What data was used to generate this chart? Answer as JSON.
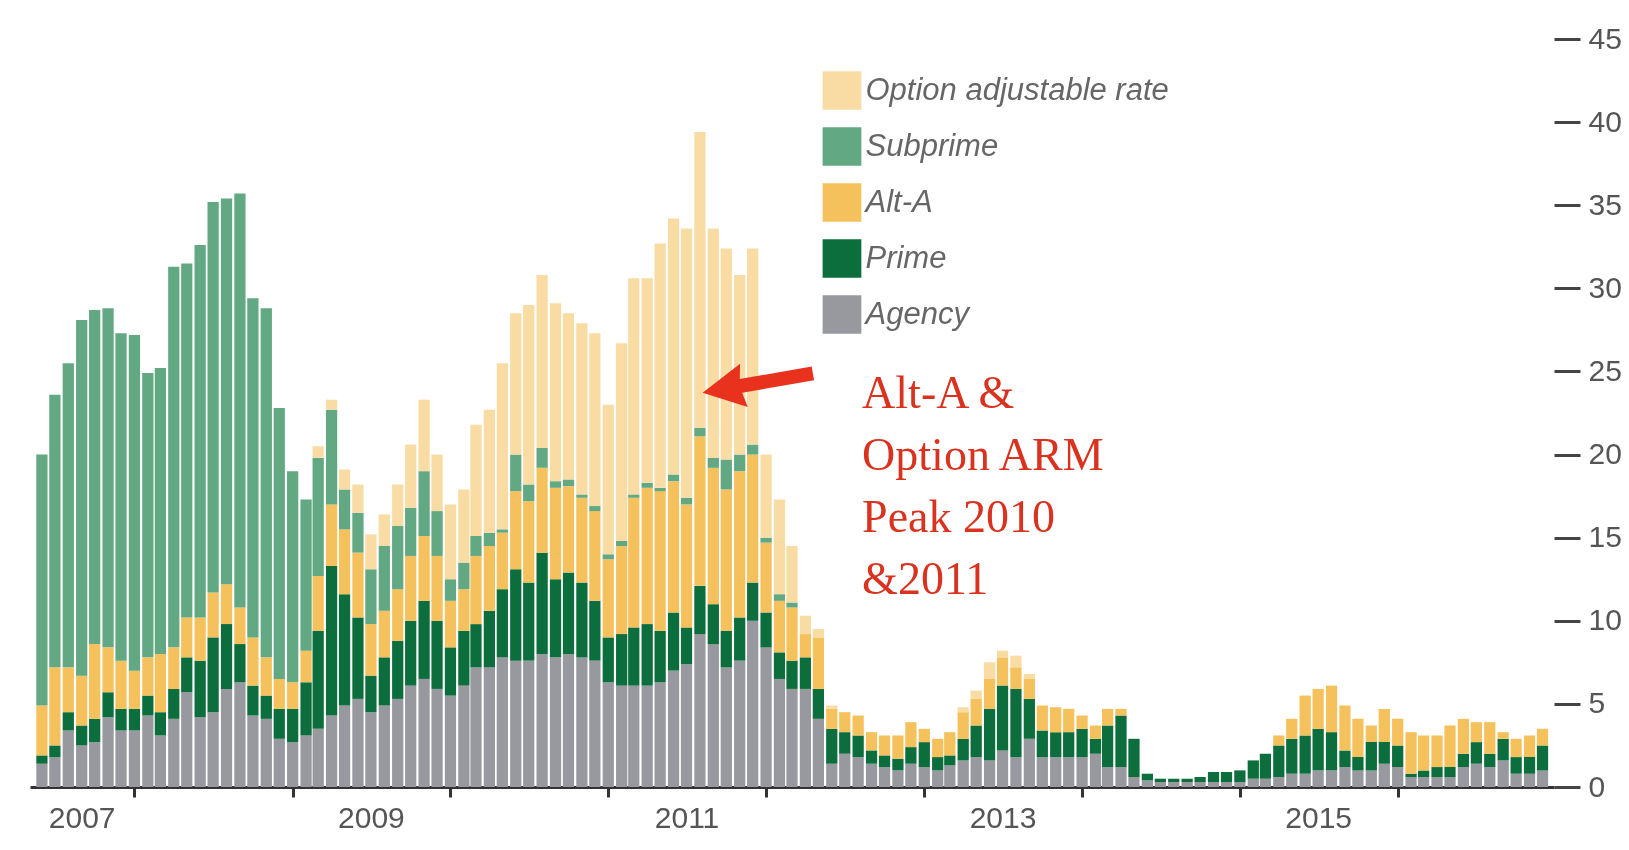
{
  "chart_data": {
    "type": "bar",
    "stacked": true,
    "legend": "top right",
    "x": [
      "2007-06",
      "2007-07",
      "2007-08",
      "2007-09",
      "2007-10",
      "2007-11",
      "2007-12",
      "2008-01",
      "2008-02",
      "2008-03",
      "2008-04",
      "2008-05",
      "2008-06",
      "2008-07",
      "2008-08",
      "2008-09",
      "2008-10",
      "2008-11",
      "2008-12",
      "2009-01",
      "2009-02",
      "2009-03",
      "2009-04",
      "2009-05",
      "2009-06",
      "2009-07",
      "2009-08",
      "2009-09",
      "2009-10",
      "2009-11",
      "2009-12",
      "2010-01",
      "2010-02",
      "2010-03",
      "2010-04",
      "2010-05",
      "2010-06",
      "2010-07",
      "2010-08",
      "2010-09",
      "2010-10",
      "2010-11",
      "2010-12",
      "2011-01",
      "2011-02",
      "2011-03",
      "2011-04",
      "2011-05",
      "2011-06",
      "2011-07",
      "2011-08",
      "2011-09",
      "2011-10",
      "2011-11",
      "2011-12",
      "2012-01",
      "2012-02",
      "2012-03",
      "2012-04",
      "2012-05",
      "2012-06",
      "2012-07",
      "2012-08",
      "2012-09",
      "2012-10",
      "2012-11",
      "2012-12",
      "2013-01",
      "2013-02",
      "2013-03",
      "2013-04",
      "2013-05",
      "2013-06",
      "2013-07",
      "2013-08",
      "2013-09",
      "2013-10",
      "2013-11",
      "2013-12",
      "2014-01",
      "2014-02",
      "2014-03",
      "2014-04",
      "2014-05",
      "2014-06",
      "2014-07",
      "2014-08",
      "2014-09",
      "2014-10",
      "2014-11",
      "2014-12",
      "2015-01",
      "2015-02",
      "2015-03",
      "2015-04",
      "2015-05",
      "2015-06",
      "2015-07",
      "2015-08",
      "2015-09",
      "2015-10",
      "2015-11",
      "2015-12",
      "2016-01",
      "2016-02",
      "2016-03",
      "2016-04",
      "2016-05",
      "2016-06",
      "2016-07",
      "2016-08",
      "2016-09",
      "2016-10",
      "2016-11",
      "2016-12"
    ],
    "series": [
      {
        "name": "Agency",
        "color": "#97999f",
        "values": [
          1.4,
          1.8,
          3.4,
          2.5,
          2.7,
          4.2,
          3.4,
          3.4,
          4.3,
          3.1,
          4.1,
          5.7,
          4.2,
          4.5,
          5.9,
          6.3,
          4.3,
          4.1,
          2.9,
          2.7,
          3.1,
          3.5,
          4.3,
          4.9,
          5.3,
          4.5,
          4.9,
          5.3,
          6.1,
          6.5,
          5.9,
          5.5,
          6.1,
          7.2,
          7.2,
          7.8,
          7.6,
          7.6,
          8.0,
          7.8,
          8.0,
          7.8,
          7.6,
          6.3,
          6.1,
          6.1,
          6.1,
          6.3,
          7.0,
          7.4,
          9.2,
          8.6,
          7.2,
          7.6,
          10.0,
          8.4,
          6.5,
          5.9,
          5.9,
          4.1,
          1.4,
          2.0,
          1.8,
          1.4,
          1.2,
          1.0,
          1.4,
          1.2,
          1.0,
          1.3,
          1.6,
          1.8,
          1.6,
          2.2,
          1.8,
          2.9,
          1.8,
          1.8,
          1.8,
          1.8,
          2.0,
          1.2,
          1.2,
          0.6,
          0.4,
          0.3,
          0.3,
          0.3,
          0.3,
          0.3,
          0.3,
          0.3,
          0.5,
          0.5,
          0.6,
          0.8,
          0.8,
          1.0,
          1.0,
          1.2,
          1.0,
          1.0,
          1.4,
          1.2,
          0.6,
          0.6,
          0.6,
          0.6,
          1.2,
          1.4,
          1.2,
          1.6,
          0.8,
          0.8,
          1.0
        ]
      },
      {
        "name": "Prime",
        "color": "#0c6e3c",
        "values": [
          0.5,
          0.7,
          1.1,
          1.2,
          1.4,
          1.5,
          1.3,
          1.3,
          1.2,
          1.4,
          1.8,
          2.1,
          3.4,
          4.5,
          3.9,
          2.3,
          1.8,
          1.4,
          1.8,
          2.0,
          3.2,
          5.9,
          9.0,
          6.7,
          4.9,
          2.2,
          2.9,
          3.5,
          3.9,
          4.7,
          4.1,
          2.9,
          3.3,
          2.6,
          3.4,
          4.1,
          5.5,
          4.7,
          6.1,
          4.7,
          4.9,
          4.5,
          3.6,
          2.7,
          3.1,
          3.5,
          3.7,
          3.1,
          3.5,
          2.2,
          2.9,
          2.4,
          2.2,
          2.6,
          2.3,
          2.1,
          1.6,
          1.7,
          1.9,
          1.8,
          2.1,
          1.3,
          1.3,
          0.8,
          0.7,
          0.7,
          1.0,
          1.5,
          0.8,
          0.6,
          1.3,
          1.9,
          3.1,
          3.9,
          4.1,
          2.4,
          1.6,
          1.5,
          1.5,
          1.7,
          0.9,
          2.5,
          3.1,
          2.3,
          0.4,
          0.2,
          0.2,
          0.2,
          0.3,
          0.6,
          0.6,
          0.7,
          1.1,
          1.5,
          1.9,
          2.1,
          2.3,
          2.5,
          2.3,
          1.0,
          0.8,
          1.7,
          1.3,
          1.3,
          0.2,
          0.4,
          0.6,
          0.6,
          0.8,
          1.3,
          0.8,
          1.3,
          1.0,
          1.0,
          1.5
        ]
      },
      {
        "name": "Alt-A",
        "color": "#f5c15c",
        "values": [
          3.0,
          4.7,
          2.7,
          3.0,
          4.5,
          2.7,
          2.9,
          2.3,
          2.3,
          3.5,
          2.5,
          2.4,
          2.6,
          2.7,
          2.4,
          2.2,
          2.9,
          2.3,
          1.8,
          1.6,
          1.9,
          3.3,
          3.7,
          3.9,
          3.9,
          3.1,
          2.8,
          3.1,
          3.9,
          3.9,
          3.9,
          2.8,
          2.5,
          4.1,
          3.9,
          3.4,
          4.7,
          4.9,
          5.1,
          5.5,
          5.2,
          5.1,
          5.4,
          4.7,
          5.3,
          7.8,
          8.2,
          8.4,
          7.9,
          7.4,
          9.0,
          8.2,
          8.5,
          8.8,
          7.7,
          4.2,
          3.1,
          3.2,
          1.4,
          3.1,
          1.2,
          1.2,
          1.2,
          1.1,
          1.2,
          1.4,
          1.5,
          0.8,
          1.1,
          1.4,
          1.6,
          1.6,
          1.8,
          1.7,
          1.3,
          1.2,
          1.5,
          1.5,
          1.4,
          0.8,
          0.8,
          1.0,
          0.4,
          0,
          0,
          0,
          0,
          0,
          0,
          0,
          0,
          0,
          0,
          0,
          0.6,
          1.2,
          2.4,
          2.4,
          2.8,
          2.7,
          2.3,
          1.0,
          2.0,
          1.6,
          2.5,
          2.1,
          1.9,
          2.5,
          2.1,
          1.2,
          1.9,
          0.4,
          1.1,
          1.3,
          1.0
        ]
      },
      {
        "name": "Subprime",
        "color": "#62a883",
        "values": [
          15.1,
          16.4,
          18.3,
          21.4,
          20.1,
          20.4,
          19.7,
          20.2,
          17.1,
          17.2,
          22.9,
          21.3,
          22.4,
          23.5,
          23.2,
          24.9,
          20.4,
          21.0,
          16.3,
          12.7,
          9.1,
          7.1,
          5.7,
          2.4,
          2.4,
          3.3,
          3.9,
          3.8,
          2.9,
          3.9,
          2.7,
          1.3,
          1.6,
          1.2,
          0.8,
          0.2,
          2.2,
          1.0,
          1.2,
          0.4,
          0.4,
          0.2,
          0.3,
          0.3,
          0.3,
          0.2,
          0.3,
          0.2,
          0.4,
          0.4,
          0.5,
          0.6,
          1.8,
          1.0,
          0.6,
          0.3,
          0.4,
          0.3,
          0,
          0,
          0,
          0,
          0,
          0,
          0,
          0,
          0,
          0,
          0,
          0,
          0,
          0,
          0,
          0,
          0,
          0,
          0,
          0,
          0,
          0,
          0,
          0,
          0,
          0,
          0,
          0,
          0,
          0,
          0,
          0,
          0,
          0,
          0,
          0,
          0,
          0,
          0,
          0,
          0,
          0,
          0,
          0,
          0,
          0,
          0,
          0,
          0,
          0,
          0,
          0,
          0,
          0,
          0,
          0,
          0
        ]
      },
      {
        "name": "Option adjustable rate",
        "color": "#f8dca4",
        "values": [
          0,
          0,
          0,
          0,
          0,
          0,
          0,
          0,
          0,
          0,
          0,
          0,
          0,
          0,
          0,
          0,
          0,
          0,
          0,
          0,
          0,
          0.7,
          0.6,
          1.2,
          1.7,
          2.1,
          1.9,
          2.5,
          3.8,
          4.3,
          3.4,
          4.5,
          4.4,
          6.7,
          7.4,
          10.0,
          8.5,
          10.8,
          10.4,
          10.7,
          10.0,
          10.3,
          10.4,
          9.0,
          11.9,
          13.0,
          12.3,
          14.7,
          15.4,
          16.2,
          17.8,
          13.8,
          12.7,
          10.8,
          11.8,
          5.0,
          5.7,
          3.4,
          1.1,
          0.5,
          0.2,
          0,
          0,
          0,
          0,
          0,
          0,
          0,
          0,
          0,
          0.3,
          0.5,
          1.0,
          0.4,
          0.7,
          0.3,
          0,
          0,
          0,
          0,
          0,
          0,
          0,
          0,
          0,
          0,
          0,
          0,
          0,
          0,
          0,
          0,
          0,
          0,
          0,
          0,
          0,
          0,
          0,
          0,
          0,
          0,
          0,
          0,
          0,
          0,
          0,
          0,
          0,
          0,
          0,
          0,
          0,
          0,
          0
        ]
      }
    ],
    "xlim": [
      "2007-05-16",
      "2016-12-16"
    ],
    "xticks": [
      {
        "value": "2007-09",
        "label": "2007"
      },
      {
        "value": "2008-01",
        "label": null
      },
      {
        "value": "2009-01",
        "label": null
      },
      {
        "value": "2009-07",
        "label": "2009"
      },
      {
        "value": "2010-01",
        "label": null
      },
      {
        "value": "2011-01",
        "label": null
      },
      {
        "value": "2011-07",
        "label": "2011"
      },
      {
        "value": "2012-01",
        "label": null
      },
      {
        "value": "2013-01",
        "label": null
      },
      {
        "value": "2013-07",
        "label": "2013"
      },
      {
        "value": "2014-01",
        "label": null
      },
      {
        "value": "2015-01",
        "label": null
      },
      {
        "value": "2015-07",
        "label": "2015"
      },
      {
        "value": "2016-01",
        "label": null
      }
    ],
    "ylim": [
      0,
      45
    ],
    "yticks": [
      0,
      5,
      10,
      15,
      20,
      25,
      30,
      35,
      40,
      45
    ],
    "annotations": [
      "Alt-A &\nOption ARM\nPeak 2010\n&2011"
    ]
  }
}
